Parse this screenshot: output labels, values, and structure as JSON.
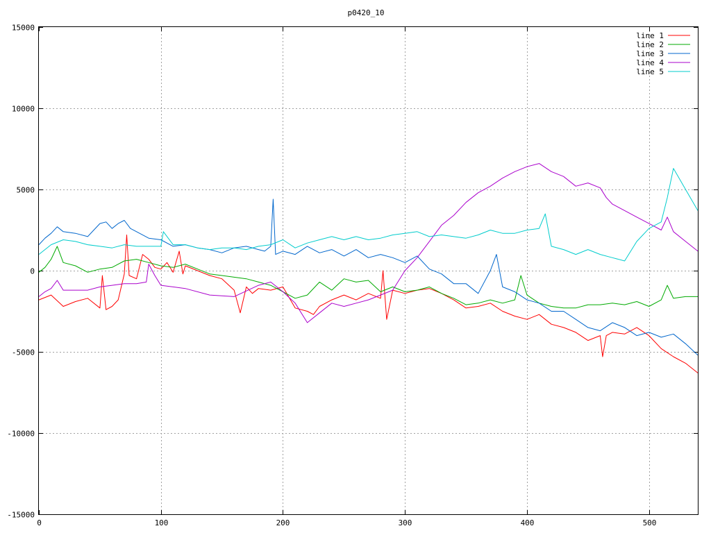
{
  "chart_data": {
    "type": "line",
    "title": "p0420_10",
    "xlabel": "",
    "ylabel": "",
    "xlim": [
      0,
      540
    ],
    "ylim": [
      -15000,
      15000
    ],
    "xticks": [
      0,
      100,
      200,
      300,
      400,
      500
    ],
    "yticks": [
      -15000,
      -10000,
      -5000,
      0,
      5000,
      10000,
      15000
    ],
    "grid": true,
    "legend_position": "top-right",
    "series": [
      {
        "name": "line 1",
        "color": "#ff0000",
        "x": [
          0,
          10,
          20,
          30,
          40,
          50,
          52,
          55,
          60,
          65,
          70,
          72,
          74,
          80,
          85,
          90,
          95,
          100,
          105,
          110,
          115,
          118,
          120,
          130,
          140,
          150,
          160,
          165,
          170,
          175,
          180,
          190,
          200,
          210,
          220,
          225,
          230,
          240,
          250,
          260,
          270,
          280,
          282,
          285,
          290,
          300,
          310,
          320,
          330,
          340,
          350,
          360,
          370,
          380,
          390,
          400,
          410,
          420,
          430,
          440,
          450,
          460,
          462,
          465,
          470,
          480,
          490,
          500,
          510,
          520,
          530,
          540
        ],
        "y": [
          -1800,
          -1500,
          -2200,
          -1900,
          -1700,
          -2300,
          -300,
          -2400,
          -2200,
          -1800,
          -200,
          2200,
          -300,
          -500,
          1000,
          700,
          200,
          100,
          500,
          -100,
          1200,
          -200,
          300,
          0,
          -300,
          -500,
          -1200,
          -2600,
          -1000,
          -1400,
          -1100,
          -1200,
          -1000,
          -2300,
          -2500,
          -2700,
          -2200,
          -1800,
          -1500,
          -1800,
          -1400,
          -1700,
          0,
          -3000,
          -1200,
          -1400,
          -1200,
          -1100,
          -1400,
          -1800,
          -2300,
          -2200,
          -2000,
          -2500,
          -2800,
          -3000,
          -2700,
          -3300,
          -3500,
          -3800,
          -4300,
          -4000,
          -5300,
          -4000,
          -3800,
          -3900,
          -3500,
          -4000,
          -4800,
          -5300,
          -5700,
          -6300
        ]
      },
      {
        "name": "line 2",
        "color": "#00aa00",
        "x": [
          0,
          5,
          10,
          15,
          20,
          30,
          40,
          50,
          60,
          70,
          80,
          90,
          100,
          110,
          120,
          130,
          140,
          150,
          160,
          170,
          180,
          190,
          200,
          210,
          220,
          230,
          240,
          250,
          260,
          270,
          280,
          290,
          300,
          310,
          320,
          330,
          340,
          350,
          360,
          370,
          380,
          390,
          395,
          400,
          410,
          420,
          430,
          440,
          450,
          460,
          470,
          480,
          490,
          500,
          510,
          515,
          520,
          530,
          540
        ],
        "y": [
          -100,
          200,
          700,
          1500,
          500,
          300,
          -100,
          100,
          200,
          600,
          700,
          500,
          300,
          200,
          400,
          100,
          -200,
          -300,
          -400,
          -500,
          -700,
          -900,
          -1300,
          -1700,
          -1500,
          -700,
          -1200,
          -500,
          -700,
          -600,
          -1300,
          -1000,
          -1300,
          -1200,
          -1000,
          -1400,
          -1700,
          -2100,
          -2000,
          -1800,
          -2000,
          -1800,
          -300,
          -1500,
          -2000,
          -2200,
          -2300,
          -2300,
          -2100,
          -2100,
          -2000,
          -2100,
          -1900,
          -2200,
          -1800,
          -900,
          -1700,
          -1600,
          -1600
        ]
      },
      {
        "name": "line 3",
        "color": "#0066cc",
        "x": [
          0,
          5,
          10,
          15,
          20,
          30,
          40,
          50,
          55,
          60,
          65,
          70,
          75,
          80,
          90,
          100,
          110,
          120,
          130,
          140,
          150,
          160,
          170,
          180,
          185,
          190,
          192,
          194,
          200,
          210,
          220,
          230,
          240,
          250,
          260,
          270,
          280,
          290,
          300,
          310,
          320,
          330,
          340,
          350,
          360,
          370,
          375,
          380,
          390,
          400,
          410,
          420,
          430,
          440,
          450,
          460,
          470,
          480,
          490,
          500,
          510,
          520,
          530,
          540
        ],
        "y": [
          1600,
          2000,
          2300,
          2700,
          2400,
          2300,
          2100,
          2900,
          3000,
          2600,
          2900,
          3100,
          2600,
          2400,
          2000,
          1900,
          1500,
          1600,
          1400,
          1300,
          1100,
          1400,
          1500,
          1300,
          1200,
          1500,
          4400,
          1000,
          1200,
          1000,
          1500,
          1100,
          1300,
          900,
          1300,
          800,
          1000,
          800,
          500,
          900,
          100,
          -200,
          -800,
          -800,
          -1400,
          0,
          1000,
          -1000,
          -1300,
          -1800,
          -2000,
          -2500,
          -2500,
          -3000,
          -3500,
          -3700,
          -3200,
          -3500,
          -4000,
          -3800,
          -4100,
          -3900,
          -4500,
          -5200
        ]
      },
      {
        "name": "line 4",
        "color": "#aa00cc",
        "x": [
          0,
          5,
          10,
          15,
          20,
          30,
          40,
          50,
          60,
          70,
          80,
          88,
          90,
          95,
          100,
          120,
          140,
          160,
          180,
          190,
          200,
          210,
          220,
          230,
          240,
          250,
          260,
          270,
          280,
          290,
          300,
          310,
          320,
          330,
          340,
          350,
          360,
          370,
          380,
          390,
          400,
          410,
          420,
          430,
          440,
          450,
          460,
          465,
          470,
          480,
          490,
          500,
          510,
          515,
          520,
          530,
          540
        ],
        "y": [
          -1600,
          -1300,
          -1100,
          -600,
          -1200,
          -1200,
          -1200,
          -1000,
          -900,
          -800,
          -800,
          -700,
          400,
          -300,
          -900,
          -1100,
          -1500,
          -1600,
          -900,
          -700,
          -1300,
          -2000,
          -3200,
          -2600,
          -2000,
          -2200,
          -2000,
          -1800,
          -1500,
          -1200,
          0,
          800,
          1800,
          2800,
          3400,
          4200,
          4800,
          5200,
          5700,
          6100,
          6400,
          6600,
          6100,
          5800,
          5200,
          5400,
          5100,
          4500,
          4100,
          3700,
          3300,
          2900,
          2500,
          3300,
          2400,
          1800,
          1200
        ]
      },
      {
        "name": "line 5",
        "color": "#00cccc",
        "x": [
          0,
          5,
          10,
          20,
          30,
          40,
          50,
          60,
          70,
          80,
          90,
          100,
          102,
          110,
          120,
          130,
          140,
          150,
          160,
          170,
          180,
          190,
          200,
          210,
          220,
          230,
          240,
          250,
          260,
          270,
          280,
          290,
          300,
          310,
          320,
          330,
          340,
          350,
          360,
          370,
          380,
          390,
          400,
          410,
          415,
          420,
          430,
          440,
          450,
          460,
          470,
          480,
          490,
          500,
          510,
          515,
          520,
          530,
          540
        ],
        "y": [
          1000,
          1300,
          1600,
          1900,
          1800,
          1600,
          1500,
          1400,
          1600,
          1500,
          1500,
          1500,
          2400,
          1600,
          1600,
          1400,
          1300,
          1400,
          1400,
          1300,
          1500,
          1600,
          1900,
          1400,
          1700,
          1900,
          2100,
          1900,
          2100,
          1900,
          2000,
          2200,
          2300,
          2400,
          2100,
          2200,
          2100,
          2000,
          2200,
          2500,
          2300,
          2300,
          2500,
          2600,
          3500,
          1500,
          1300,
          1000,
          1300,
          1000,
          800,
          600,
          1800,
          2600,
          3000,
          4500,
          6300,
          5000,
          3700
        ]
      }
    ]
  }
}
